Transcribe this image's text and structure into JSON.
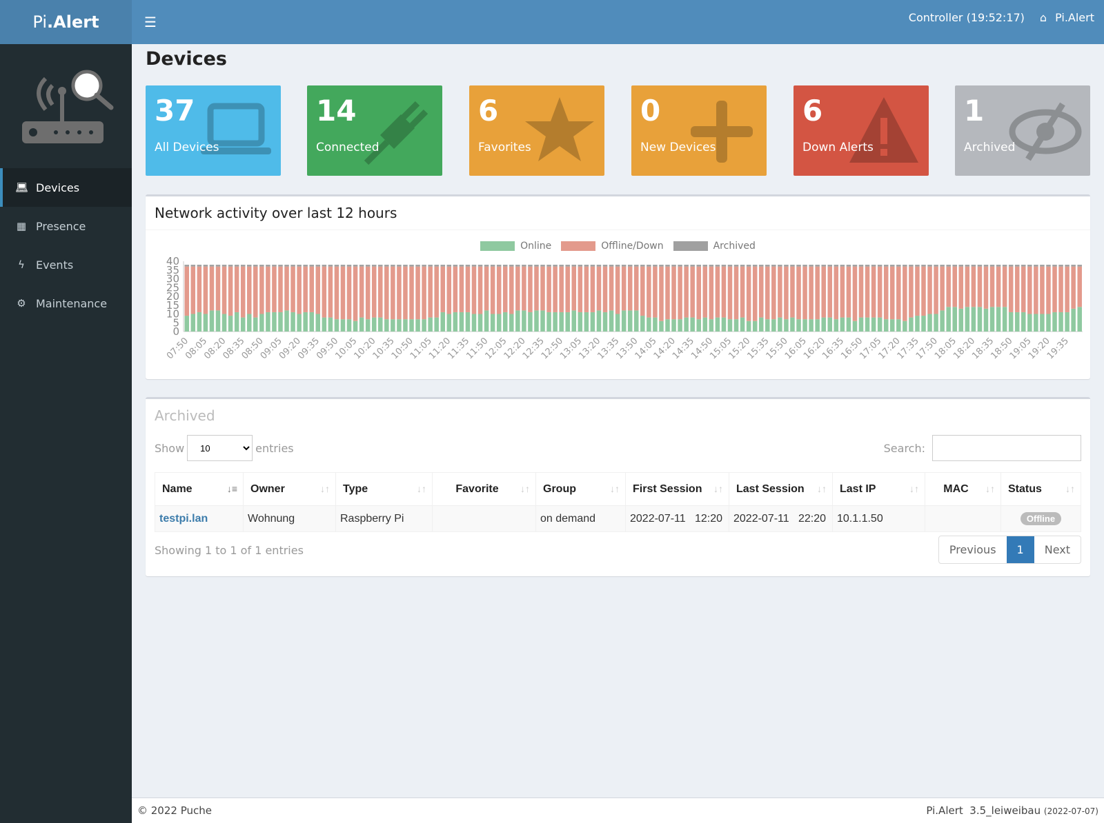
{
  "header": {
    "logo_prefix": "Pi",
    "logo_suffix": ".Alert",
    "menu_icon": "hamburger-icon",
    "controller": "Controller (19:52:17)",
    "user": "Pi.Alert"
  },
  "sidebar": {
    "items": [
      {
        "label": "Devices",
        "icon": "laptop-icon"
      },
      {
        "label": "Presence",
        "icon": "calendar-icon"
      },
      {
        "label": "Events",
        "icon": "bolt-icon"
      },
      {
        "label": "Maintenance",
        "icon": "gear-icon"
      }
    ]
  },
  "page_title": "Devices",
  "cards": [
    {
      "value": "37",
      "label": "All Devices",
      "color": "#4fbbe9",
      "icon": "laptop-icon"
    },
    {
      "value": "14",
      "label": "Connected",
      "color": "#43a85c",
      "icon": "plug-icon"
    },
    {
      "value": "6",
      "label": "Favorites",
      "color": "#e8a13a",
      "icon": "star-icon"
    },
    {
      "value": "0",
      "label": "New Devices",
      "color": "#e8a13a",
      "icon": "plus-icon"
    },
    {
      "value": "6",
      "label": "Down Alerts",
      "color": "#d35543",
      "icon": "warning-icon"
    },
    {
      "value": "1",
      "label": "Archived",
      "color": "#b5b8bd",
      "icon": "eye-slash-icon"
    }
  ],
  "chart_title": "Network activity over last 12 hours",
  "chart_data": {
    "type": "bar",
    "stacked": true,
    "ylim": [
      0,
      40
    ],
    "yticks": [
      0,
      5,
      10,
      15,
      20,
      25,
      30,
      35,
      40
    ],
    "legend_position": "top",
    "x_start": "07:50",
    "x_step_minutes": 5,
    "xtick_labels": [
      "07:50",
      "08:05",
      "08:20",
      "08:35",
      "08:50",
      "09:05",
      "09:20",
      "09:35",
      "09:50",
      "10:05",
      "10:20",
      "10:35",
      "10:50",
      "11:05",
      "11:20",
      "11:35",
      "11:50",
      "12:05",
      "12:20",
      "12:35",
      "12:50",
      "13:05",
      "13:20",
      "13:35",
      "13:50",
      "14:05",
      "14:20",
      "14:35",
      "14:50",
      "15:05",
      "15:20",
      "15:35",
      "15:50",
      "16:05",
      "16:20",
      "16:35",
      "16:50",
      "17:05",
      "17:20",
      "17:35",
      "17:50",
      "18:05",
      "18:20",
      "18:35",
      "18:50",
      "19:05",
      "19:20",
      "19:35"
    ],
    "series": [
      {
        "name": "Online",
        "color": "#8fc9a0",
        "values": [
          9,
          10,
          11,
          10,
          12,
          12,
          10,
          9,
          11,
          8,
          10,
          8,
          10,
          11,
          11,
          11,
          12,
          11,
          10,
          11,
          11,
          10,
          8,
          8,
          7,
          7,
          7,
          6,
          8,
          7,
          8,
          8,
          7,
          7,
          7,
          7,
          7,
          7,
          7,
          8,
          8,
          11,
          10,
          11,
          11,
          11,
          10,
          10,
          12,
          10,
          10,
          11,
          10,
          12,
          12,
          11,
          12,
          12,
          11,
          11,
          11,
          11,
          12,
          11,
          11,
          11,
          12,
          11,
          12,
          10,
          12,
          12,
          12,
          9,
          8,
          8,
          6,
          7,
          7,
          7,
          8,
          8,
          7,
          8,
          7,
          8,
          8,
          7,
          7,
          8,
          6,
          6,
          8,
          7,
          7,
          8,
          7,
          8,
          7,
          7,
          7,
          7,
          8,
          8,
          7,
          8,
          8,
          6,
          8,
          8,
          8,
          8,
          7,
          7,
          7,
          6,
          8,
          9,
          9,
          10,
          10,
          12,
          14,
          14,
          13,
          14,
          14,
          14,
          13,
          14,
          14,
          14,
          11,
          11,
          11,
          10,
          10,
          10,
          10,
          11,
          11,
          11,
          13,
          14
        ]
      },
      {
        "name": "Offline/Down",
        "color": "#e39a8c",
        "total_with_online": 37
      },
      {
        "name": "Archived",
        "color": "#a0a0a0",
        "value": 1
      }
    ]
  },
  "archived": {
    "title": "Archived",
    "show": "Show",
    "entries": "entries",
    "page_size": "10",
    "search_label": "Search:",
    "search_value": "",
    "columns": [
      "Name",
      "Owner",
      "Type",
      "Favorite",
      "Group",
      "First Session",
      "Last Session",
      "Last IP",
      "MAC",
      "Status"
    ],
    "rows": [
      {
        "name": "testpi.lan",
        "owner": "Wohnung",
        "type": "Raspberry Pi",
        "favorite": "",
        "group": "on demand",
        "first": "2022-07-11   12:20",
        "last": "2022-07-11   22:20",
        "ip": "10.1.1.50",
        "mac": "",
        "status": "Offline"
      }
    ],
    "info": "Showing 1 to 1 of 1 entries",
    "prev": "Previous",
    "page": "1",
    "next": "Next"
  },
  "footer": {
    "copyright": "© 2022 Puche",
    "version": "Pi.Alert  3.5_leiweibau",
    "date": "(2022-07-07)"
  }
}
